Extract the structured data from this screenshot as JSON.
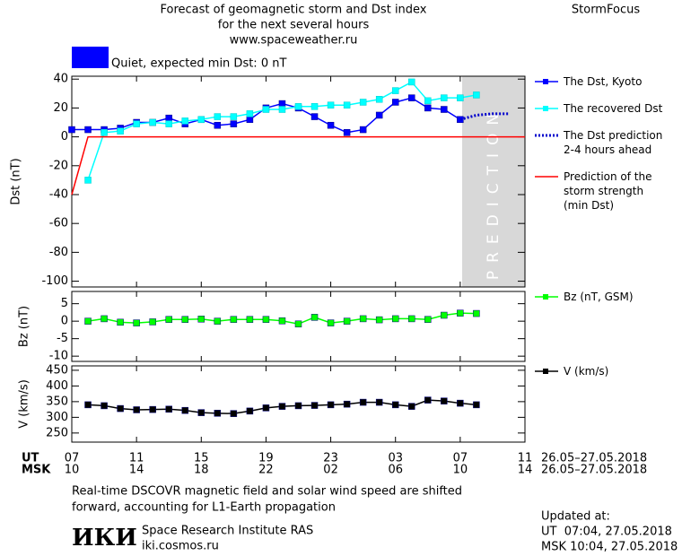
{
  "header": {
    "title_lines": [
      "Forecast of geomagnetic storm and Dst index",
      "for the next several hours",
      "www.spaceweather.ru"
    ],
    "brand": "StormFocus",
    "status": "Quiet, expected min Dst: 0 nT",
    "prediction_label": "PREDICTION"
  },
  "time_axis": {
    "ut_label": "UT",
    "msk_label": "MSK",
    "date_range": "26.05–27.05.2018",
    "ut": [
      "07",
      null,
      null,
      null,
      "11",
      null,
      null,
      null,
      "15",
      null,
      null,
      null,
      "19",
      null,
      null,
      null,
      "23",
      null,
      null,
      null,
      "03",
      null,
      null,
      null,
      "07",
      null,
      null,
      null,
      "11"
    ],
    "msk": [
      "10",
      null,
      null,
      null,
      "14",
      null,
      null,
      null,
      "18",
      null,
      null,
      null,
      "22",
      null,
      null,
      null,
      "02",
      null,
      null,
      null,
      "06",
      null,
      null,
      null,
      "10",
      null,
      null,
      null,
      "14"
    ]
  },
  "chart_data": [
    {
      "type": "line",
      "y_label": "Dst (nT)",
      "ylim": [
        -104,
        42
      ],
      "yticks": [
        -100,
        -80,
        -60,
        -40,
        -20,
        0,
        20,
        40
      ],
      "series": [
        {
          "name": "The Dst, Kyoto",
          "color": "#0000ff",
          "markers": true,
          "line_style": "solid",
          "values": [
            5,
            5,
            5,
            6,
            10,
            10,
            13,
            9,
            12,
            8,
            9,
            12,
            20,
            23,
            20,
            14,
            8,
            3,
            5,
            15,
            24,
            27,
            20,
            19,
            12,
            null,
            null,
            null,
            null
          ]
        },
        {
          "name": "The recovered Dst",
          "color": "#00ffff",
          "markers": true,
          "line_style": "solid",
          "values": [
            null,
            -30,
            3,
            4,
            9,
            10,
            9,
            11,
            12,
            14,
            14,
            16,
            19,
            19,
            21,
            21,
            22,
            22,
            24,
            26,
            32,
            38,
            25,
            27,
            27,
            29,
            null,
            null,
            null
          ]
        },
        {
          "name": "The Dst prediction\n2-4 hours ahead",
          "color": "#0000cc",
          "markers": false,
          "line_style": "dotted",
          "values": [
            null,
            null,
            null,
            null,
            null,
            null,
            null,
            null,
            null,
            null,
            null,
            null,
            null,
            null,
            null,
            null,
            null,
            null,
            null,
            null,
            null,
            null,
            null,
            null,
            12,
            15,
            16,
            16,
            null
          ]
        },
        {
          "name": "Prediction of the\nstorm strength\n(min Dst)",
          "color": "#ff0000",
          "markers": false,
          "line_style": "solid",
          "values": [
            -40,
            0,
            0,
            0,
            0,
            0,
            0,
            0,
            0,
            0,
            0,
            0,
            0,
            0,
            0,
            0,
            0,
            0,
            0,
            0,
            0,
            0,
            0,
            0,
            0,
            0,
            0,
            0,
            0
          ]
        }
      ]
    },
    {
      "type": "line",
      "y_label": "Bz (nT)",
      "ylim": [
        -11.5,
        8.5
      ],
      "yticks": [
        -10,
        -5,
        0,
        5
      ],
      "series": [
        {
          "name": "Bz (nT, GSM)",
          "color": "#00ff00",
          "markers": true,
          "line_style": "solid",
          "values": [
            null,
            0,
            0.7,
            -0.3,
            -0.5,
            -0.2,
            0.5,
            0.5,
            0.6,
            0,
            0.5,
            0.5,
            0.5,
            0.1,
            -0.8,
            1.1,
            -0.5,
            0,
            0.7,
            0.4,
            0.7,
            0.7,
            0.5,
            1.7,
            2.3,
            2.2,
            null,
            null,
            null
          ]
        }
      ]
    },
    {
      "type": "line",
      "y_label": "V (km/s)",
      "ylim": [
        221,
        464
      ],
      "yticks": [
        250,
        300,
        350,
        400,
        450
      ],
      "series": [
        {
          "name": "V (km/s)",
          "color": "#000000",
          "markers": true,
          "line_style": "solid",
          "values": [
            null,
            340,
            337,
            328,
            324,
            325,
            326,
            322,
            315,
            313,
            312,
            320,
            330,
            335,
            337,
            338,
            340,
            342,
            348,
            348,
            340,
            335,
            355,
            352,
            345,
            340,
            null,
            null,
            null
          ]
        }
      ]
    }
  ],
  "footer": {
    "note_lines": [
      "Real-time DSCOVR magnetic field and solar wind speed are shifted",
      "forward, accounting for L1-Earth propagation"
    ],
    "logo": "ИКИ",
    "institute": "Space Research Institute RAS",
    "site": "iki.cosmos.ru",
    "updated_label": "Updated at:",
    "updated_ut": "UT  07:04, 27.05.2018",
    "updated_msk": "MSK 10:04, 27.05.2018"
  }
}
